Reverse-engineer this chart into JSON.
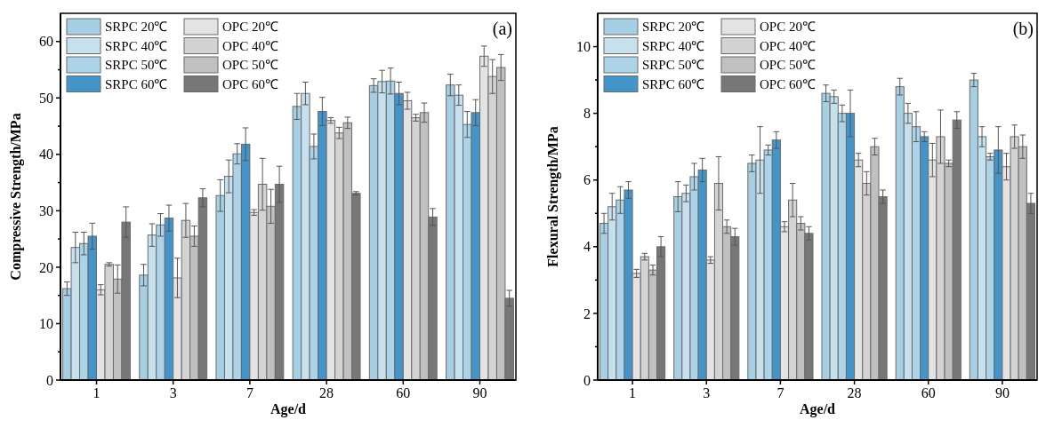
{
  "chart_data": [
    {
      "type": "bar",
      "title": "(a)",
      "xlabel": "Age/d",
      "ylabel": "Compressive Strength/MPa",
      "categories": [
        "1",
        "3",
        "7",
        "28",
        "60",
        "90"
      ],
      "ylim": [
        0,
        65
      ],
      "yticks": [
        0,
        {
          "value": 5,
          "label": null
        },
        10,
        {
          "value": 15,
          "label": null
        },
        20,
        {
          "value": 25,
          "label": null
        },
        30,
        {
          "value": 35,
          "label": null
        },
        40,
        {
          "value": 45,
          "label": null
        },
        50,
        {
          "value": 55,
          "label": null
        },
        60
      ],
      "grid": false,
      "legend": "top left",
      "series": [
        {
          "name": "SRPC 20℃",
          "color": "#a6cfe3",
          "values": [
            16.2,
            18.6,
            32.7,
            48.5,
            52.2,
            52.3
          ],
          "errors": [
            1.2,
            1.9,
            2.8,
            2.3,
            1.2,
            1.9
          ]
        },
        {
          "name": "SRPC 40℃",
          "color": "#c6e0ee",
          "values": [
            23.5,
            25.7,
            36.1,
            50.8,
            52.9,
            50.5
          ],
          "errors": [
            2.7,
            2.0,
            2.9,
            2.0,
            2.0,
            1.8
          ]
        },
        {
          "name": "SRPC 50℃",
          "color": "#acd3e8",
          "values": [
            24.2,
            27.5,
            40.1,
            41.4,
            53.0,
            45.3
          ],
          "errors": [
            2.0,
            2.0,
            1.8,
            2.2,
            2.3,
            2.3
          ]
        },
        {
          "name": "SRPC 60℃",
          "color": "#4394c8",
          "values": [
            25.5,
            28.7,
            41.8,
            47.6,
            50.8,
            47.4
          ],
          "errors": [
            2.3,
            2.3,
            2.9,
            2.5,
            2.0,
            2.3
          ]
        },
        {
          "name": "OPC 20℃",
          "color": "#e3e3e3",
          "values": [
            16.0,
            18.1,
            29.7,
            46.0,
            49.5,
            57.4
          ],
          "errors": [
            0.9,
            3.5,
            0.5,
            0.5,
            1.5,
            1.8
          ]
        },
        {
          "name": "OPC 40℃",
          "color": "#d3d3d3",
          "values": [
            20.5,
            28.3,
            34.7,
            43.8,
            46.5,
            53.8
          ],
          "errors": [
            0.3,
            3.0,
            4.6,
            1.0,
            0.6,
            3.0
          ]
        },
        {
          "name": "OPC 50℃",
          "color": "#c0c0c0",
          "values": [
            17.9,
            25.5,
            30.8,
            45.6,
            47.4,
            55.4
          ],
          "errors": [
            2.5,
            1.8,
            3.0,
            1.0,
            1.7,
            2.3
          ]
        },
        {
          "name": "OPC 60℃",
          "color": "#777777",
          "values": [
            28.0,
            32.3,
            34.7,
            33.1,
            28.9,
            14.5
          ],
          "errors": [
            2.7,
            1.6,
            3.2,
            0.3,
            1.5,
            1.4
          ]
        }
      ]
    },
    {
      "type": "bar",
      "title": "(b)",
      "xlabel": "Age/d",
      "ylabel": "Flexural Strength/MPa",
      "categories": [
        "1",
        "3",
        "7",
        "28",
        "60",
        "90"
      ],
      "ylim": [
        0,
        11
      ],
      "yticks": [
        0,
        {
          "value": 1,
          "label": null
        },
        2,
        {
          "value": 3,
          "label": null
        },
        4,
        {
          "value": 5,
          "label": null
        },
        6,
        {
          "value": 7,
          "label": null
        },
        8,
        {
          "value": 9,
          "label": null
        },
        10
      ],
      "grid": false,
      "legend": "top left",
      "series": [
        {
          "name": "SRPC 20℃",
          "color": "#a6cfe3",
          "values": [
            4.7,
            5.5,
            6.5,
            8.6,
            8.8,
            9.0
          ],
          "errors": [
            0.3,
            0.45,
            0.25,
            0.25,
            0.25,
            0.2
          ]
        },
        {
          "name": "SRPC 40℃",
          "color": "#c6e0ee",
          "values": [
            5.2,
            5.6,
            6.6,
            8.5,
            8.0,
            7.3
          ],
          "errors": [
            0.4,
            0.25,
            1.0,
            0.2,
            0.3,
            0.3
          ]
        },
        {
          "name": "SRPC 50℃",
          "color": "#acd3e8",
          "values": [
            5.4,
            6.1,
            6.9,
            8.0,
            7.6,
            6.7
          ],
          "errors": [
            0.4,
            0.4,
            0.15,
            0.25,
            0.45,
            0.1
          ]
        },
        {
          "name": "SRPC 60℃",
          "color": "#4394c8",
          "values": [
            5.7,
            6.3,
            7.2,
            8.0,
            7.3,
            6.9
          ],
          "errors": [
            0.25,
            0.35,
            0.25,
            0.7,
            0.15,
            0.7
          ]
        },
        {
          "name": "OPC 20℃",
          "color": "#e3e3e3",
          "values": [
            3.2,
            3.6,
            4.6,
            6.6,
            6.6,
            6.4
          ],
          "errors": [
            0.12,
            0.1,
            0.15,
            0.2,
            0.5,
            0.4
          ]
        },
        {
          "name": "OPC 40℃",
          "color": "#d3d3d3",
          "values": [
            3.7,
            5.9,
            5.4,
            5.9,
            7.3,
            7.3
          ],
          "errors": [
            0.1,
            0.8,
            0.5,
            0.35,
            0.8,
            0.35
          ]
        },
        {
          "name": "OPC 50℃",
          "color": "#c0c0c0",
          "values": [
            3.3,
            4.6,
            4.7,
            7.0,
            6.5,
            7.0
          ],
          "errors": [
            0.15,
            0.2,
            0.2,
            0.25,
            0.1,
            0.35
          ]
        },
        {
          "name": "OPC 60℃",
          "color": "#777777",
          "values": [
            4.0,
            4.3,
            4.4,
            5.5,
            7.8,
            5.3
          ],
          "errors": [
            0.3,
            0.25,
            0.2,
            0.2,
            0.25,
            0.3
          ]
        }
      ]
    }
  ]
}
